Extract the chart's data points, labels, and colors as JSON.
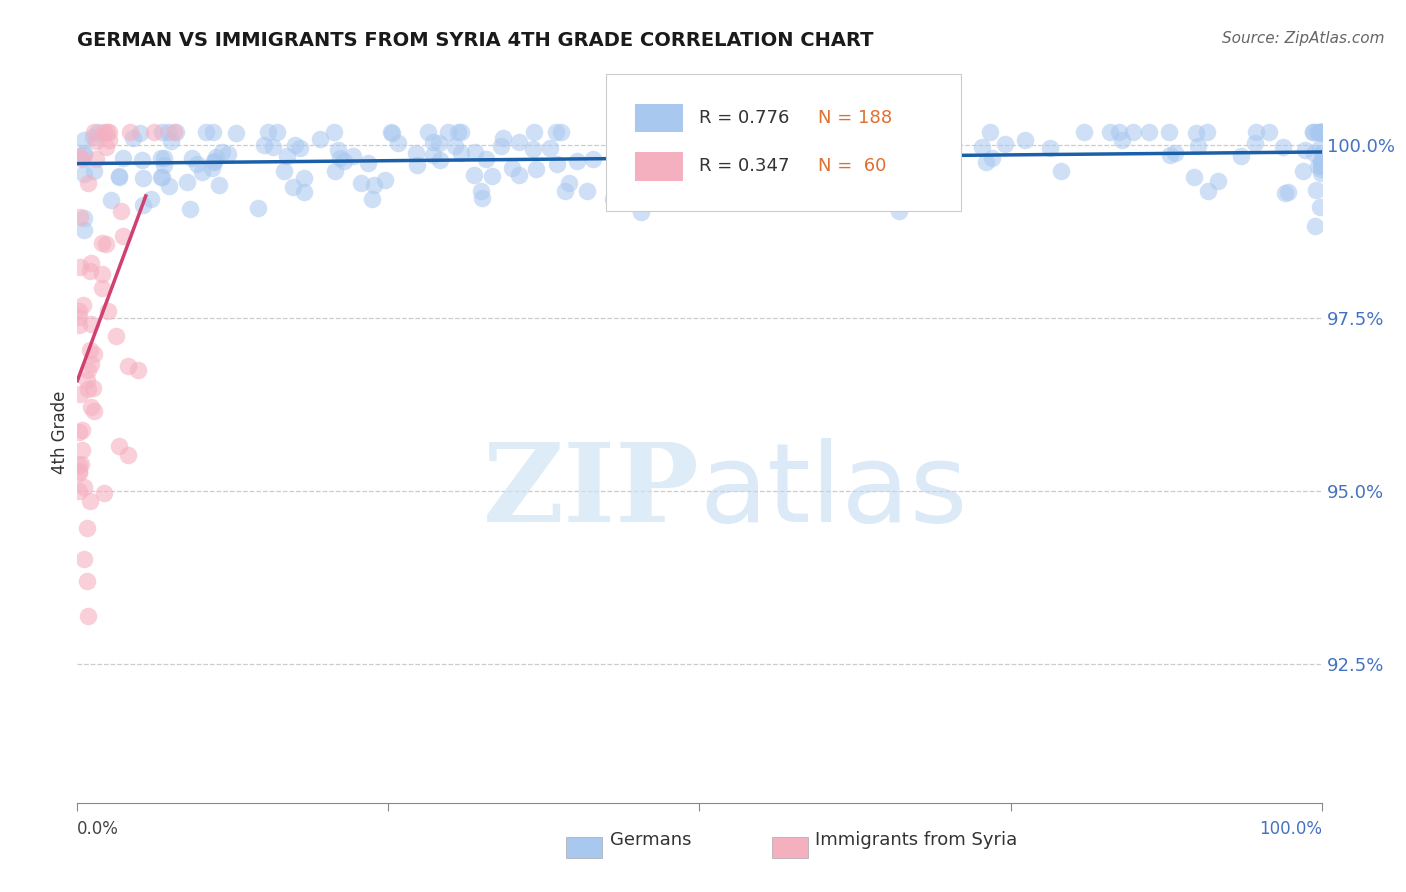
{
  "title": "GERMAN VS IMMIGRANTS FROM SYRIA 4TH GRADE CORRELATION CHART",
  "source": "Source: ZipAtlas.com",
  "ylabel": "4th Grade",
  "legend_blue_label": "Germans",
  "legend_pink_label": "Immigrants from Syria",
  "legend_blue_r": "R = 0.776",
  "legend_blue_n": "N = 188",
  "legend_pink_r": "R = 0.347",
  "legend_pink_n": "N =  60",
  "blue_color": "#a8c8f0",
  "pink_color": "#f5b0c0",
  "blue_line_color": "#1a5fa8",
  "pink_line_color": "#d04070",
  "blue_r": 0.776,
  "pink_r": 0.347,
  "blue_n": 188,
  "pink_n": 60,
  "watermark_zip": "ZIP",
  "watermark_atlas": "atlas",
  "xmin": 0.0,
  "xmax": 1.0,
  "ymin": 0.905,
  "ymax": 1.012,
  "ytick_vals": [
    0.925,
    0.95,
    0.975,
    1.0
  ],
  "ytick_labels": [
    "92.5%",
    "95.0%",
    "97.5%",
    "100.0%"
  ]
}
